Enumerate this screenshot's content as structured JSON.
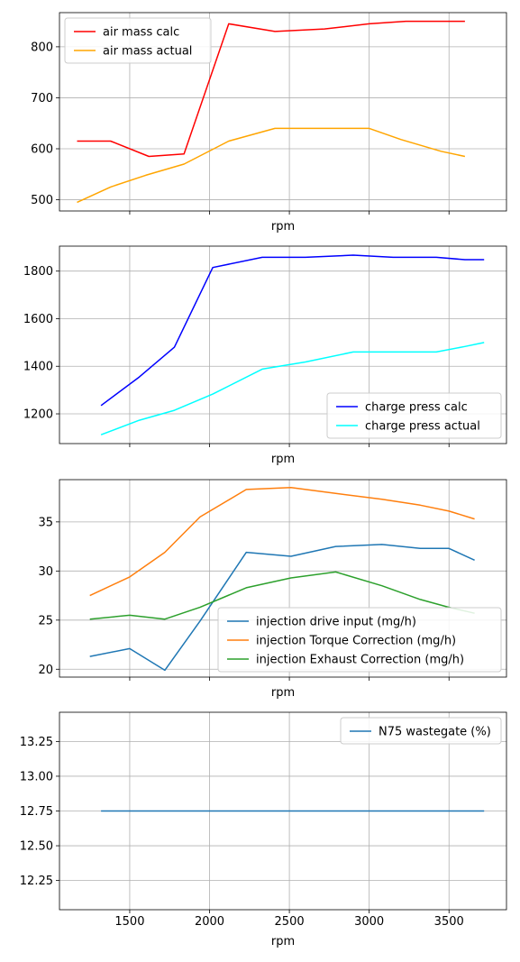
{
  "chart_data": [
    {
      "type": "line",
      "xlabel": "rpm",
      "ylabel": "",
      "xlim": [
        1060,
        3860
      ],
      "ylim": [
        478,
        867
      ],
      "xticks": [
        1500,
        2000,
        2500,
        3000,
        3500
      ],
      "show_xtick_labels": false,
      "yticks": [
        500,
        600,
        700,
        800
      ],
      "ytick_labels": [
        "500",
        "600",
        "700",
        "800"
      ],
      "grid": true,
      "legend_position": "top-left",
      "series": [
        {
          "name": "air mass calc",
          "color": "#ff0000",
          "x": [
            1170,
            1380,
            1620,
            1840,
            2120,
            2410,
            2720,
            3000,
            3230,
            3400,
            3600
          ],
          "y": [
            615,
            615,
            585,
            590,
            845,
            830,
            835,
            845,
            850,
            850,
            850
          ]
        },
        {
          "name": "air mass actual",
          "color": "#ffa500",
          "x": [
            1170,
            1380,
            1600,
            1840,
            2120,
            2410,
            2700,
            3000,
            3200,
            3450,
            3600
          ],
          "y": [
            495,
            525,
            548,
            570,
            615,
            640,
            640,
            640,
            618,
            595,
            585
          ]
        }
      ]
    },
    {
      "type": "line",
      "xlabel": "rpm",
      "ylabel": "",
      "xlim": [
        1060,
        3860
      ],
      "ylim": [
        1075,
        1905
      ],
      "xticks": [
        1500,
        2000,
        2500,
        3000,
        3500
      ],
      "show_xtick_labels": false,
      "yticks": [
        1200,
        1400,
        1600,
        1800
      ],
      "ytick_labels": [
        "1200",
        "1400",
        "1600",
        "1800"
      ],
      "grid": true,
      "legend_position": "bottom-right",
      "series": [
        {
          "name": "charge press calc",
          "color": "#0000ff",
          "x": [
            1320,
            1560,
            1780,
            2020,
            2330,
            2600,
            2900,
            3150,
            3420,
            3600,
            3720
          ],
          "y": [
            1235,
            1355,
            1480,
            1815,
            1858,
            1858,
            1867,
            1858,
            1858,
            1848,
            1848
          ]
        },
        {
          "name": "charge press actual",
          "color": "#00ffff",
          "x": [
            1320,
            1560,
            1780,
            2020,
            2330,
            2600,
            2900,
            3150,
            3420,
            3600,
            3720
          ],
          "y": [
            1112,
            1173,
            1215,
            1283,
            1388,
            1418,
            1460,
            1460,
            1460,
            1483,
            1500
          ]
        }
      ]
    },
    {
      "type": "line",
      "xlabel": "rpm",
      "ylabel": "",
      "xlim": [
        1060,
        3860
      ],
      "ylim": [
        19.2,
        39.3
      ],
      "xticks": [
        1500,
        2000,
        2500,
        3000,
        3500
      ],
      "show_xtick_labels": false,
      "yticks": [
        20,
        25,
        30,
        35
      ],
      "ytick_labels": [
        "20",
        "25",
        "30",
        "35"
      ],
      "grid": true,
      "legend_position": "bottom-right",
      "series": [
        {
          "name": "injection drive input (mg/h)",
          "color": "#1f77b4",
          "x": [
            1250,
            1500,
            1720,
            1940,
            2230,
            2510,
            2790,
            3080,
            3320,
            3500,
            3660
          ],
          "y": [
            21.3,
            22.1,
            19.9,
            24.9,
            31.9,
            31.5,
            32.5,
            32.7,
            32.3,
            32.3,
            31.1
          ]
        },
        {
          "name": "injection Torque Correction (mg/h)",
          "color": "#ff7f0e",
          "x": [
            1250,
            1500,
            1720,
            1940,
            2230,
            2510,
            2790,
            3080,
            3320,
            3500,
            3660
          ],
          "y": [
            27.5,
            29.4,
            31.9,
            35.5,
            38.3,
            38.5,
            37.9,
            37.3,
            36.7,
            36.1,
            35.3
          ]
        },
        {
          "name": "injection Exhaust Correction (mg/h)",
          "color": "#2ca02c",
          "x": [
            1250,
            1500,
            1720,
            1940,
            2230,
            2510,
            2790,
            3080,
            3320,
            3500,
            3660
          ],
          "y": [
            25.1,
            25.5,
            25.1,
            26.3,
            28.3,
            29.3,
            29.9,
            28.5,
            27.1,
            26.3,
            25.7
          ]
        }
      ]
    },
    {
      "type": "line",
      "xlabel": "rpm",
      "ylabel": "",
      "xlim": [
        1060,
        3860
      ],
      "ylim": [
        12.04,
        13.46
      ],
      "xticks": [
        1500,
        2000,
        2500,
        3000,
        3500
      ],
      "xtick_labels": [
        "1500",
        "2000",
        "2500",
        "3000",
        "3500"
      ],
      "show_xtick_labels": true,
      "yticks": [
        12.25,
        12.5,
        12.75,
        13.0,
        13.25
      ],
      "ytick_labels": [
        "12.25",
        "12.50",
        "12.75",
        "13.00",
        "13.25"
      ],
      "grid": true,
      "legend_position": "top-right",
      "series": [
        {
          "name": "N75 wastegate (%)",
          "color": "#1f77b4",
          "x": [
            1320,
            3720
          ],
          "y": [
            12.75,
            12.75
          ]
        }
      ]
    }
  ]
}
